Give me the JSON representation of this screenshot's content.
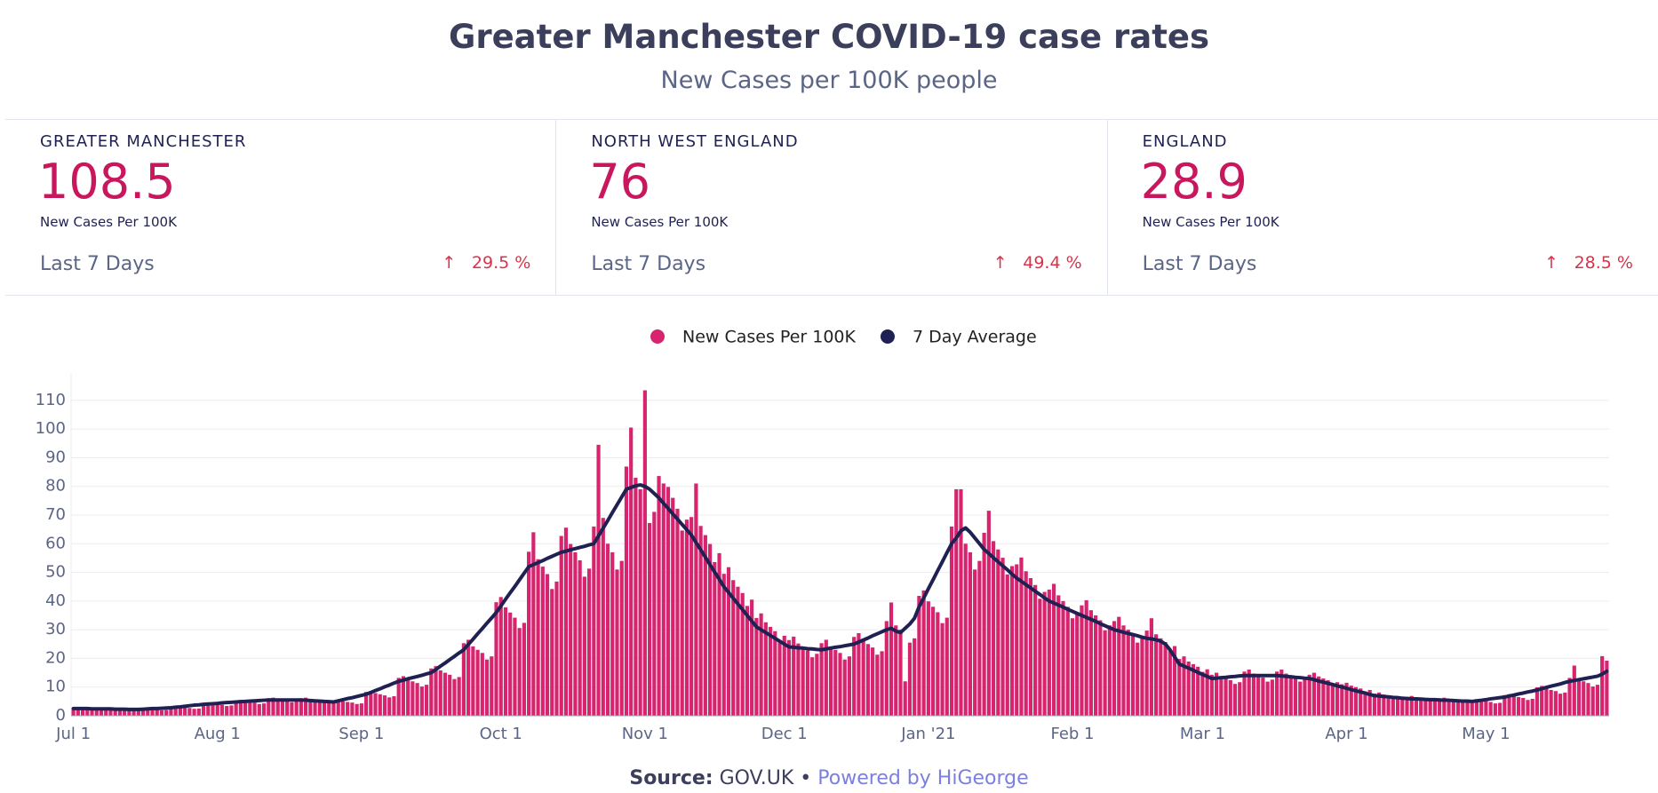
{
  "header": {
    "title": "Greater Manchester COVID-19 case rates",
    "subtitle": "New Cases per 100K people"
  },
  "stats": [
    {
      "name": "GREATER MANCHESTER",
      "value": 108.5,
      "unit": "New Cases Per 100K",
      "period": "Last 7 Days",
      "change": "29.5 %"
    },
    {
      "name": "NORTH WEST ENGLAND",
      "value": 76,
      "unit": "New Cases Per 100K",
      "period": "Last 7 Days",
      "change": "49.4 %"
    },
    {
      "name": "ENGLAND",
      "value": 28.9,
      "unit": "New Cases Per 100K",
      "period": "Last 7 Days",
      "change": "28.5 %"
    }
  ],
  "chart_data": {
    "type": "bar",
    "categories": [
      "Jul 1",
      null,
      null,
      null,
      null,
      null,
      null,
      null,
      null,
      null,
      null,
      null,
      null,
      null,
      null,
      null,
      null,
      null,
      null,
      null,
      null,
      null,
      null,
      null,
      null,
      null,
      null,
      null,
      null,
      null,
      null,
      "Aug 1",
      null,
      null,
      null,
      null,
      null,
      null,
      null,
      null,
      null,
      null,
      null,
      null,
      null,
      null,
      null,
      null,
      null,
      null,
      null,
      null,
      null,
      null,
      null,
      null,
      null,
      null,
      null,
      null,
      null,
      null,
      "Sep 1",
      null,
      null,
      null,
      null,
      null,
      null,
      null,
      null,
      null,
      null,
      null,
      null,
      null,
      null,
      null,
      null,
      null,
      null,
      null,
      null,
      null,
      null,
      null,
      null,
      null,
      null,
      null,
      null,
      null,
      "Oct 1",
      null,
      null,
      null,
      null,
      null,
      null,
      null,
      null,
      null,
      null,
      null,
      null,
      null,
      null,
      null,
      null,
      null,
      null,
      null,
      null,
      null,
      null,
      null,
      null,
      null,
      null,
      null,
      null,
      null,
      null,
      "Nov 1",
      null,
      null,
      null,
      null,
      null,
      null,
      null,
      null,
      null,
      null,
      null,
      null,
      null,
      null,
      null,
      null,
      null,
      null,
      null,
      null,
      null,
      null,
      null,
      null,
      null,
      null,
      null,
      null,
      null,
      "Dec 1",
      null,
      null,
      null,
      null,
      null,
      null,
      null,
      null,
      null,
      null,
      null,
      null,
      null,
      null,
      null,
      null,
      null,
      null,
      null,
      null,
      null,
      null,
      null,
      null,
      null,
      null,
      null,
      null,
      null,
      null,
      "Jan '21",
      null,
      null,
      null,
      null,
      null,
      null,
      null,
      null,
      null,
      null,
      null,
      null,
      null,
      null,
      null,
      null,
      null,
      null,
      null,
      null,
      null,
      null,
      null,
      null,
      null,
      null,
      null,
      null,
      null,
      null,
      "Feb 1",
      null,
      null,
      null,
      null,
      null,
      null,
      null,
      null,
      null,
      null,
      null,
      null,
      null,
      null,
      null,
      null,
      null,
      null,
      null,
      null,
      null,
      null,
      null,
      null,
      null,
      null,
      null,
      "Mar 1",
      null,
      null,
      null,
      null,
      null,
      null,
      null,
      null,
      null,
      null,
      null,
      null,
      null,
      null,
      null,
      null,
      null,
      null,
      null,
      null,
      null,
      null,
      null,
      null,
      null,
      null,
      null,
      null,
      null,
      null,
      "Apr 1",
      null,
      null,
      null,
      null,
      null,
      null,
      null,
      null,
      null,
      null,
      null,
      null,
      null,
      null,
      null,
      null,
      null,
      null,
      null,
      null,
      null,
      null,
      null,
      null,
      null,
      null,
      null,
      null,
      null,
      "May 1",
      null,
      null,
      null,
      null,
      null,
      null,
      null,
      null,
      null,
      null,
      null,
      null,
      null,
      null,
      null,
      null,
      null,
      null,
      null,
      null,
      null,
      null,
      null,
      null,
      null,
      null
    ],
    "series": [
      {
        "name": "New Cases Per 100K",
        "color": "#d6246e",
        "values": [
          2.8,
          2.9,
          2.6,
          2.5,
          2.4,
          2.1,
          2.3,
          2.6,
          2.8,
          2.5,
          2.4,
          2.3,
          2.0,
          2.2,
          2.4,
          2.5,
          2.3,
          2.2,
          2.1,
          1.9,
          2.0,
          3.1,
          3.2,
          2.9,
          2.8,
          2.7,
          2.4,
          2.5,
          4.4,
          4.6,
          4.2,
          4.0,
          3.8,
          3.4,
          3.6,
          5.3,
          5.5,
          5.0,
          4.8,
          4.6,
          4.1,
          4.3,
          6.1,
          6.3,
          5.8,
          5.5,
          5.2,
          4.7,
          5.0,
          6.1,
          6.3,
          5.8,
          5.5,
          5.2,
          4.7,
          5.0,
          5.3,
          5.5,
          5.0,
          4.8,
          4.6,
          4.1,
          4.3,
          8.3,
          8.6,
          7.9,
          7.5,
          7.1,
          6.4,
          6.8,
          13.2,
          13.8,
          12.6,
          12,
          11.4,
          10.2,
          10.8,
          16.5,
          17.3,
          15.8,
          15,
          14.3,
          12.8,
          13.5,
          25.3,
          26.5,
          24.2,
          23,
          21.9,
          19.6,
          20.7,
          39.6,
          41.4,
          37.8,
          36,
          34.2,
          30.6,
          32.4,
          57.2,
          64.0,
          54.6,
          52,
          49.4,
          44.2,
          46.8,
          62.7,
          65.6,
          59.9,
          57,
          54.2,
          48.5,
          51.3,
          66.0,
          94.5,
          69.0,
          60,
          57,
          51,
          54,
          86.9,
          100.5,
          83.0,
          79,
          113.5,
          67.2,
          71.1,
          83.6,
          81.0,
          79.8,
          76,
          72.2,
          64.6,
          68.4,
          69.3,
          81.0,
          66.2,
          63,
          59.9,
          53.6,
          56.7,
          49.5,
          51.8,
          47.3,
          45,
          42.8,
          38.3,
          40.5,
          34.1,
          35.7,
          32.6,
          31,
          29.5,
          26.4,
          27.9,
          26.4,
          27.6,
          25.2,
          24,
          22.8,
          20.4,
          21.6,
          25.3,
          26.5,
          24.2,
          23,
          21.9,
          19.6,
          20.7,
          27.5,
          28.8,
          26.3,
          25,
          23.8,
          21.3,
          22.5,
          33.0,
          39.5,
          31.5,
          30,
          12.0,
          25.5,
          27.0,
          41.8,
          43.7,
          39.9,
          38,
          36.1,
          32.3,
          34.2,
          66.0,
          79.0,
          79.0,
          60,
          57.0,
          51.0,
          54.0,
          63.8,
          71.5,
          60.9,
          58,
          55.1,
          49.3,
          52.2,
          52.8,
          55.2,
          50.4,
          48,
          45.6,
          40.8,
          43.2,
          44.0,
          46.0,
          42.0,
          40,
          38.0,
          34.0,
          36.0,
          38.5,
          40.3,
          36.8,
          35,
          33.3,
          29.8,
          31.5,
          33.0,
          34.5,
          31.5,
          30,
          28.5,
          25.5,
          27.0,
          29.7,
          34.0,
          28.4,
          27,
          25.7,
          23.0,
          24.3,
          19.8,
          20.7,
          18.9,
          18,
          17.1,
          15.3,
          16.2,
          14.3,
          15.0,
          13.7,
          13,
          12.4,
          11.1,
          11.7,
          15.4,
          16.1,
          14.7,
          14,
          13.3,
          11.9,
          12.6,
          15.4,
          16.1,
          14.7,
          14,
          13.3,
          11.9,
          12.6,
          14.3,
          15.0,
          13.7,
          13,
          12.4,
          11.1,
          11.7,
          11.0,
          11.5,
          10.5,
          10,
          9.5,
          8.5,
          9.0,
          7.7,
          8.1,
          7.4,
          7,
          6.7,
          6.0,
          6.3,
          6.6,
          6.9,
          6.3,
          6,
          5.7,
          5.1,
          5.4,
          6.1,
          6.3,
          5.8,
          5.5,
          5.2,
          4.7,
          5.0,
          5.5,
          5.8,
          5.3,
          5,
          4.8,
          4.3,
          4.5,
          7.2,
          7.5,
          6.8,
          6.5,
          6.2,
          5.5,
          5.9,
          9.9,
          10.4,
          9.5,
          9,
          8.6,
          7.7,
          8.1,
          13.2,
          17.5,
          12.6,
          12,
          11.4,
          10.2,
          10.8,
          20.8,
          19.2
        ]
      },
      {
        "name": "7 Day Average",
        "color": "#1f2152",
        "type": "line",
        "values": [
          2.5,
          2.5,
          2.5,
          2.5,
          2.4,
          2.4,
          2.4,
          2.4,
          2.4,
          2.3,
          2.3,
          2.3,
          2.2,
          2.2,
          2.2,
          2.3,
          2.4,
          2.5,
          2.5,
          2.6,
          2.7,
          2.8,
          3.0,
          3.1,
          3.3,
          3.5,
          3.7,
          3.8,
          4.0,
          4.1,
          4.2,
          4.3,
          4.5,
          4.6,
          4.7,
          4.8,
          4.9,
          5.0,
          5.1,
          5.2,
          5.3,
          5.4,
          5.5,
          5.5,
          5.5,
          5.5,
          5.5,
          5.5,
          5.5,
          5.5,
          5.4,
          5.3,
          5.2,
          5.1,
          5.0,
          4.9,
          4.8,
          5.2,
          5.6,
          6.0,
          6.3,
          6.7,
          7.1,
          7.5,
          8.1,
          8.8,
          9.4,
          10.1,
          10.7,
          11.4,
          12.0,
          12.4,
          12.9,
          13.3,
          13.7,
          14.1,
          14.6,
          15.0,
          16.1,
          17.3,
          18.4,
          19.6,
          20.7,
          21.9,
          23.0,
          24.9,
          26.7,
          28.6,
          30.4,
          32.3,
          34.1,
          36.0,
          38.3,
          40.6,
          42.9,
          45.1,
          47.4,
          49.7,
          52.0,
          52.7,
          53.4,
          54.1,
          54.9,
          55.6,
          56.3,
          57.0,
          57.4,
          57.9,
          58.3,
          58.7,
          59.1,
          59.6,
          60.0,
          62.7,
          65.4,
          68.1,
          70.9,
          73.6,
          76.3,
          79.0,
          79.6,
          80.2,
          80.5,
          80.0,
          79.0,
          77.5,
          76.0,
          74.1,
          72.3,
          70.4,
          68.6,
          66.7,
          64.9,
          63.0,
          60.4,
          57.9,
          55.3,
          52.7,
          50.1,
          47.6,
          45.0,
          43.0,
          41.0,
          39.0,
          37.0,
          35.0,
          33.0,
          31.0,
          30.0,
          29.0,
          28.0,
          27.0,
          26.0,
          25.0,
          24.0,
          23.9,
          23.7,
          23.6,
          23.4,
          23.3,
          23.1,
          23.0,
          23.3,
          23.6,
          23.9,
          24.1,
          24.4,
          24.7,
          25.0,
          25.7,
          26.4,
          27.1,
          27.9,
          28.6,
          29.3,
          30.0,
          30.5,
          29.5,
          29.0,
          30.5,
          32.0,
          34.0,
          38.0,
          41.1,
          44.3,
          47.4,
          50.6,
          53.7,
          56.9,
          60.0,
          62.0,
          64.5,
          65.5,
          64.0,
          62.0,
          60.0,
          58.0,
          56.6,
          55.1,
          53.7,
          52.3,
          50.9,
          49.4,
          48.0,
          46.9,
          45.7,
          44.6,
          43.4,
          42.3,
          41.1,
          40.0,
          39.3,
          38.6,
          37.9,
          37.1,
          36.4,
          35.7,
          35.0,
          34.3,
          33.6,
          32.9,
          32.1,
          31.4,
          30.7,
          30.0,
          29.6,
          29.1,
          28.7,
          28.3,
          27.9,
          27.4,
          27.0,
          26.8,
          26.5,
          26.0,
          25.0,
          23.0,
          20.5,
          18.0,
          17.3,
          16.6,
          15.9,
          15.1,
          14.4,
          13.7,
          13.0,
          13.1,
          13.3,
          13.4,
          13.6,
          13.7,
          13.9,
          14.0,
          14.0,
          14.0,
          14.0,
          14.0,
          14.0,
          14.0,
          14.0,
          13.9,
          13.7,
          13.6,
          13.4,
          13.3,
          13.1,
          13.0,
          12.6,
          12.1,
          11.7,
          11.3,
          10.9,
          10.4,
          10.0,
          9.6,
          9.1,
          8.7,
          8.3,
          7.9,
          7.4,
          7.0,
          6.9,
          6.7,
          6.6,
          6.4,
          6.3,
          6.1,
          6.0,
          5.9,
          5.9,
          5.8,
          5.7,
          5.6,
          5.6,
          5.5,
          5.4,
          5.4,
          5.3,
          5.2,
          5.1,
          5.1,
          5.0,
          5.2,
          5.4,
          5.6,
          5.9,
          6.1,
          6.3,
          6.5,
          6.9,
          7.2,
          7.6,
          7.9,
          8.3,
          8.6,
          9.0,
          9.4,
          9.9,
          10.3,
          10.7,
          11.1,
          11.6,
          12.0,
          12.3,
          12.6,
          12.9,
          13.2,
          13.5,
          13.8,
          14.5,
          15.5
        ]
      }
    ],
    "ylim": [
      0,
      118
    ],
    "yticks": [
      0,
      10,
      20,
      30,
      40,
      50,
      60,
      70,
      80,
      90,
      100,
      110
    ],
    "grid": true
  },
  "footer": {
    "source_label": "Source:",
    "source": "GOV.UK",
    "separator": "•",
    "powered": "Powered by HiGeorge"
  }
}
